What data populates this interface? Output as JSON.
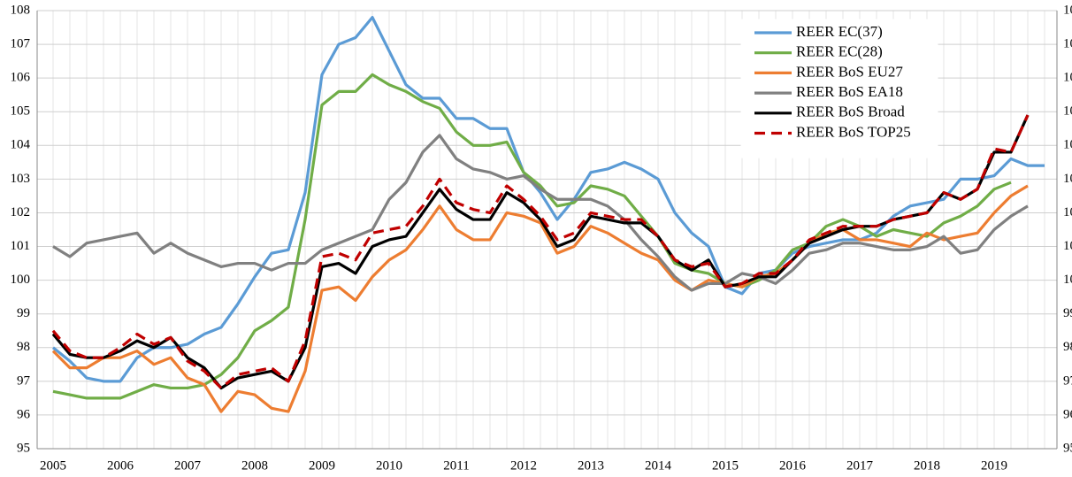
{
  "chart_data": {
    "type": "line",
    "categories": [
      "2005",
      null,
      null,
      null,
      "2006",
      null,
      null,
      null,
      "2007",
      null,
      null,
      null,
      "2008",
      null,
      null,
      null,
      "2009",
      null,
      null,
      null,
      "2010",
      null,
      null,
      null,
      "2011",
      null,
      null,
      null,
      "2012",
      null,
      null,
      null,
      "2013",
      null,
      null,
      null,
      "2014",
      null,
      null,
      null,
      "2015",
      null,
      null,
      null,
      "2016",
      null,
      null,
      null,
      "2017",
      null,
      null,
      null,
      "2018",
      null,
      null,
      null,
      "2019",
      null,
      null,
      null
    ],
    "series": [
      {
        "name": "REER EC(37)",
        "color": "#5b9bd5",
        "dashed": false,
        "values": [
          98.0,
          97.6,
          97.1,
          97.0,
          97.0,
          97.7,
          98.0,
          98.0,
          98.1,
          98.4,
          98.6,
          99.3,
          100.1,
          100.8,
          100.9,
          102.6,
          106.1,
          107.0,
          107.2,
          107.8,
          106.8,
          105.8,
          105.4,
          105.4,
          104.8,
          104.8,
          104.5,
          104.5,
          103.2,
          102.6,
          101.8,
          102.4,
          103.2,
          103.3,
          103.5,
          103.3,
          103.0,
          102.0,
          101.4,
          101.0,
          99.8,
          99.6,
          100.2,
          100.3,
          100.8,
          101.0,
          101.1,
          101.2,
          101.2,
          101.4,
          101.9,
          102.2,
          102.3,
          102.4,
          103.0,
          103.0,
          103.1,
          103.6,
          103.4,
          103.4
        ]
      },
      {
        "name": "REER EC(28)",
        "color": "#70ad47",
        "dashed": false,
        "values": [
          96.7,
          96.6,
          96.5,
          96.5,
          96.5,
          96.7,
          96.9,
          96.8,
          96.8,
          96.9,
          97.2,
          97.7,
          98.5,
          98.8,
          99.2,
          101.8,
          105.2,
          105.6,
          105.6,
          106.1,
          105.8,
          105.6,
          105.3,
          105.1,
          104.4,
          104.0,
          104.0,
          104.1,
          103.2,
          102.8,
          102.2,
          102.3,
          102.8,
          102.7,
          102.5,
          101.9,
          101.3,
          100.5,
          100.3,
          100.2,
          99.9,
          99.8,
          100.0,
          100.3,
          100.9,
          101.1,
          101.6,
          101.8,
          101.6,
          101.3,
          101.5,
          101.4,
          101.3,
          101.7,
          101.9,
          102.2,
          102.7,
          102.9,
          null,
          null
        ]
      },
      {
        "name": "REER BoS EU27",
        "color": "#ed7d31",
        "dashed": false,
        "values": [
          97.9,
          97.4,
          97.4,
          97.7,
          97.7,
          97.9,
          97.5,
          97.7,
          97.1,
          96.9,
          96.1,
          96.7,
          96.6,
          96.2,
          96.1,
          97.3,
          99.7,
          99.8,
          99.4,
          100.1,
          100.6,
          100.9,
          101.5,
          102.2,
          101.5,
          101.2,
          101.2,
          102.0,
          101.9,
          101.7,
          100.8,
          101.0,
          101.6,
          101.4,
          101.1,
          100.8,
          100.6,
          100.0,
          99.7,
          100.0,
          99.9,
          99.8,
          100.1,
          100.2,
          100.6,
          101.1,
          101.4,
          101.5,
          101.2,
          101.2,
          101.1,
          101.0,
          101.4,
          101.2,
          101.3,
          101.4,
          102.0,
          102.5,
          102.8,
          null
        ]
      },
      {
        "name": "REER BoS EA18",
        "color": "#808080",
        "dashed": false,
        "values": [
          101.0,
          100.7,
          101.1,
          101.2,
          101.3,
          101.4,
          100.8,
          101.1,
          100.8,
          100.6,
          100.4,
          100.5,
          100.5,
          100.3,
          100.5,
          100.5,
          100.9,
          101.1,
          101.3,
          101.5,
          102.4,
          102.9,
          103.8,
          104.3,
          103.6,
          103.3,
          103.2,
          103.0,
          103.1,
          102.7,
          102.4,
          102.4,
          102.4,
          102.2,
          101.8,
          101.2,
          100.7,
          100.1,
          99.7,
          99.9,
          99.9,
          100.2,
          100.1,
          99.9,
          100.3,
          100.8,
          100.9,
          101.1,
          101.1,
          101.0,
          100.9,
          100.9,
          101.0,
          101.3,
          100.8,
          100.9,
          101.5,
          101.9,
          102.2,
          null
        ]
      },
      {
        "name": "REER BoS Broad",
        "color": "#000000",
        "dashed": false,
        "values": [
          98.4,
          97.8,
          97.7,
          97.7,
          97.9,
          98.2,
          98.0,
          98.3,
          97.7,
          97.4,
          96.8,
          97.1,
          97.2,
          97.3,
          97.0,
          98.0,
          100.4,
          100.5,
          100.2,
          101.0,
          101.2,
          101.3,
          102.0,
          102.7,
          102.1,
          101.8,
          101.8,
          102.6,
          102.3,
          101.8,
          101.0,
          101.2,
          101.9,
          101.8,
          101.7,
          101.7,
          101.3,
          100.6,
          100.3,
          100.6,
          99.8,
          99.9,
          100.1,
          100.1,
          100.6,
          101.1,
          101.3,
          101.5,
          101.6,
          101.6,
          101.8,
          101.9,
          102.0,
          102.6,
          102.4,
          102.7,
          103.8,
          103.8,
          104.9,
          null
        ]
      },
      {
        "name": "REER BoS TOP25",
        "color": "#c00000",
        "dashed": true,
        "values": [
          98.5,
          97.9,
          97.7,
          97.7,
          98.0,
          98.4,
          98.1,
          98.3,
          97.6,
          97.3,
          96.8,
          97.2,
          97.3,
          97.4,
          97.0,
          98.2,
          100.7,
          100.8,
          100.6,
          101.4,
          101.5,
          101.6,
          102.2,
          103.0,
          102.3,
          102.1,
          102.0,
          102.8,
          102.4,
          101.9,
          101.2,
          101.4,
          102.0,
          101.9,
          101.8,
          101.8,
          101.3,
          100.6,
          100.4,
          100.5,
          99.8,
          99.9,
          100.2,
          100.2,
          100.6,
          101.2,
          101.4,
          101.6,
          101.6,
          101.6,
          101.8,
          101.9,
          102.0,
          102.6,
          102.4,
          102.7,
          103.9,
          103.8,
          104.9,
          null
        ]
      }
    ],
    "ylim": [
      95,
      108
    ],
    "yticks": [
      95,
      96,
      97,
      98,
      99,
      100,
      101,
      102,
      103,
      104,
      105,
      106,
      107,
      108
    ],
    "mirror_y_axis": true,
    "grid": true,
    "legend": "upper-right"
  }
}
